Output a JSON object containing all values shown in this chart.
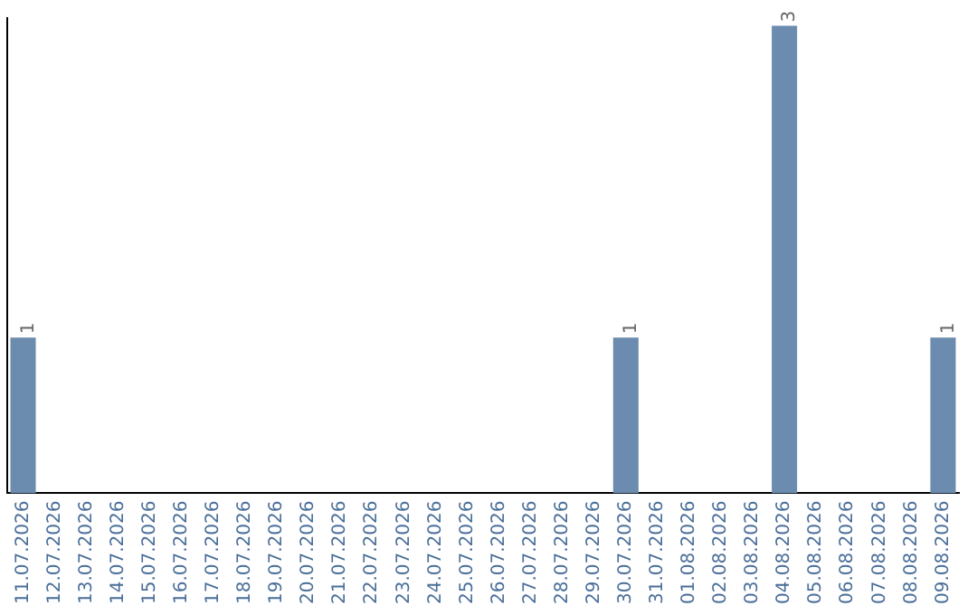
{
  "chart_data": {
    "type": "bar",
    "categories": [
      "11.07.2026",
      "12.07.2026",
      "13.07.2026",
      "14.07.2026",
      "15.07.2026",
      "16.07.2026",
      "17.07.2026",
      "18.07.2026",
      "19.07.2026",
      "20.07.2026",
      "21.07.2026",
      "22.07.2026",
      "23.07.2026",
      "24.07.2026",
      "25.07.2026",
      "26.07.2026",
      "27.07.2026",
      "28.07.2026",
      "29.07.2026",
      "30.07.2026",
      "31.07.2026",
      "01.08.2026",
      "02.08.2026",
      "03.08.2026",
      "04.08.2026",
      "05.08.2026",
      "06.08.2026",
      "07.08.2026",
      "08.08.2026",
      "09.08.2026"
    ],
    "values": [
      1,
      0,
      0,
      0,
      0,
      0,
      0,
      0,
      0,
      0,
      0,
      0,
      0,
      0,
      0,
      0,
      0,
      0,
      0,
      1,
      0,
      0,
      0,
      0,
      3,
      0,
      0,
      0,
      0,
      1
    ],
    "value_labels": [
      "1",
      null,
      null,
      null,
      null,
      null,
      null,
      null,
      null,
      null,
      null,
      null,
      null,
      null,
      null,
      null,
      null,
      null,
      null,
      "1",
      null,
      null,
      null,
      null,
      "3",
      null,
      null,
      null,
      null,
      "1"
    ],
    "color": "#6b8cae",
    "ylim": [
      0,
      3.05
    ],
    "tick_labels": "x",
    "grid": false,
    "legend": false
  }
}
